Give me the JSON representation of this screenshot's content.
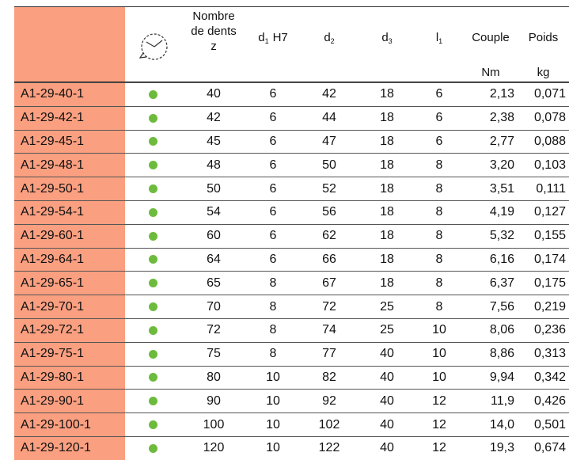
{
  "table": {
    "headers": {
      "teeth": [
        "Nombre",
        "de dents",
        "z"
      ],
      "d1": {
        "base": "d",
        "sub": "1",
        "suffix": "H7"
      },
      "d2": {
        "base": "d",
        "sub": "2"
      },
      "d3": {
        "base": "d",
        "sub": "3"
      },
      "l1": {
        "base": "l",
        "sub": "1"
      },
      "couple": "Couple",
      "poids": "Poids"
    },
    "units": {
      "couple": "Nm",
      "poids": "kg"
    },
    "rows": [
      [
        "A1-29-40-1",
        "40",
        "6",
        "42",
        "18",
        "6",
        "2,13",
        "0,071"
      ],
      [
        "A1-29-42-1",
        "42",
        "6",
        "44",
        "18",
        "6",
        "2,38",
        "0,078"
      ],
      [
        "A1-29-45-1",
        "45",
        "6",
        "47",
        "18",
        "6",
        "2,77",
        "0,088"
      ],
      [
        "A1-29-48-1",
        "48",
        "6",
        "50",
        "18",
        "8",
        "3,20",
        "0,103"
      ],
      [
        "A1-29-50-1",
        "50",
        "6",
        "52",
        "18",
        "8",
        "3,51",
        "0,111"
      ],
      [
        "A1-29-54-1",
        "54",
        "6",
        "56",
        "18",
        "8",
        "4,19",
        "0,127"
      ],
      [
        "A1-29-60-1",
        "60",
        "6",
        "62",
        "18",
        "8",
        "5,32",
        "0,155"
      ],
      [
        "A1-29-64-1",
        "64",
        "6",
        "66",
        "18",
        "8",
        "6,16",
        "0,174"
      ],
      [
        "A1-29-65-1",
        "65",
        "8",
        "67",
        "18",
        "8",
        "6,37",
        "0,175"
      ],
      [
        "A1-29-70-1",
        "70",
        "8",
        "72",
        "25",
        "8",
        "7,56",
        "0,219"
      ],
      [
        "A1-29-72-1",
        "72",
        "8",
        "74",
        "25",
        "10",
        "8,06",
        "0,236"
      ],
      [
        "A1-29-75-1",
        "75",
        "8",
        "77",
        "40",
        "10",
        "8,86",
        "0,313"
      ],
      [
        "A1-29-80-1",
        "80",
        "10",
        "82",
        "40",
        "10",
        "9,94",
        "0,342"
      ],
      [
        "A1-29-90-1",
        "90",
        "10",
        "92",
        "40",
        "12",
        "11,9",
        "0,426"
      ],
      [
        "A1-29-100-1",
        "100",
        "10",
        "102",
        "40",
        "12",
        "14,0",
        "0,501"
      ],
      [
        "A1-29-120-1",
        "120",
        "10",
        "122",
        "40",
        "12",
        "19,3",
        "0,674"
      ]
    ]
  }
}
